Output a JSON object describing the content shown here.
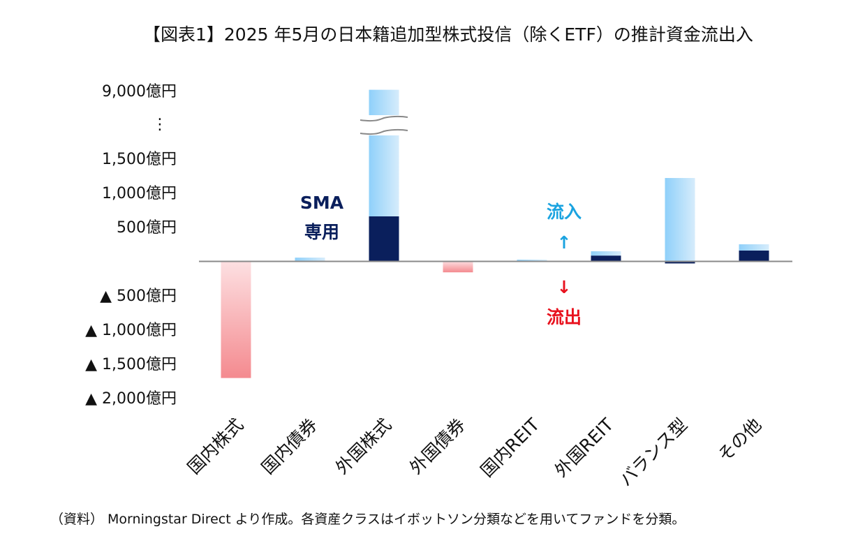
{
  "chart_data": {
    "type": "bar",
    "stacked": true,
    "title": "【図表1】2025 年5月の日本籍追加型株式投信（除くETF）の推計資金流出入",
    "unit": "億円",
    "categories": [
      "国内株式",
      "国内債券",
      "外国株式",
      "外国債券",
      "国内REIT",
      "外国REIT",
      "バランス型",
      "その他"
    ],
    "series": [
      {
        "name": "SMA専用",
        "color": "#0a1f5c",
        "values": [
          0,
          0,
          653,
          0,
          0,
          80,
          -35,
          153
        ]
      },
      {
        "color_positive": "#8fd0fa",
        "color_negative": "#f48a8f",
        "values": [
          -1710,
          50,
          8550,
          -165,
          20,
          63,
          1214,
          92
        ]
      }
    ],
    "yticks": [
      "9,000億円",
      "⋮",
      "1,500億円",
      "1,000億円",
      "500億円",
      "▲ 500億円",
      "▲ 1,000億円",
      "▲ 1,500億円",
      "▲ 2,000億円"
    ],
    "ytick_values": [
      9000,
      null,
      1500,
      1000,
      500,
      -500,
      -1000,
      -1500,
      -2000
    ],
    "axis_break": [
      2000,
      9000
    ],
    "ylim": [
      -2000,
      9200
    ],
    "grid": false,
    "annotations": {
      "sma": [
        "SMA",
        "専用"
      ],
      "inflow": "流入",
      "inflow_arrow": "↑",
      "outflow_arrow": "↓",
      "outflow": "流出"
    },
    "footnote": "（資料） Morningstar Direct より作成。各資産クラスはイボットソン分類などを用いてファンドを分類。"
  }
}
